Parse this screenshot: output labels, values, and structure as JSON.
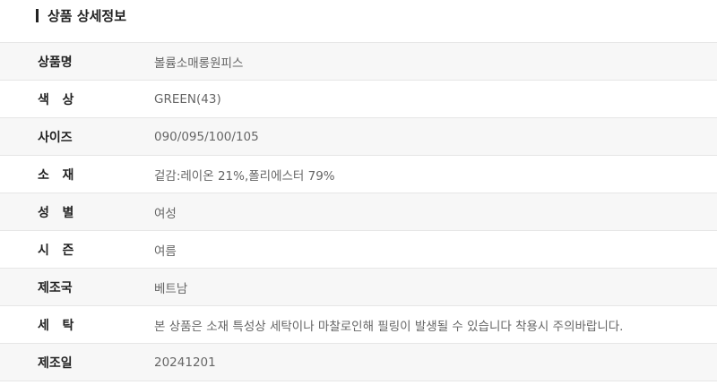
{
  "section_title": "상품 상세정보",
  "rows": [
    {
      "label": "상품명",
      "value": "볼륨소매롱원피스"
    },
    {
      "label": "색   상",
      "value": "GREEN(43)"
    },
    {
      "label": "사이즈",
      "value": "090/095/100/105"
    },
    {
      "label": "소   재",
      "value": "겉감:레이온 21%,폴리에스터 79%"
    },
    {
      "label": "성   별",
      "value": "여성"
    },
    {
      "label": "시   즌",
      "value": "여름"
    },
    {
      "label": "제조국",
      "value": "베트남"
    },
    {
      "label": "세   탁",
      "value": "본 상품은 소재 특성상 세탁이나 마찰로인해 필링이 발생될 수  있습니다 착용시 주의바랍니다."
    },
    {
      "label": "제조일",
      "value": "20241201"
    }
  ]
}
